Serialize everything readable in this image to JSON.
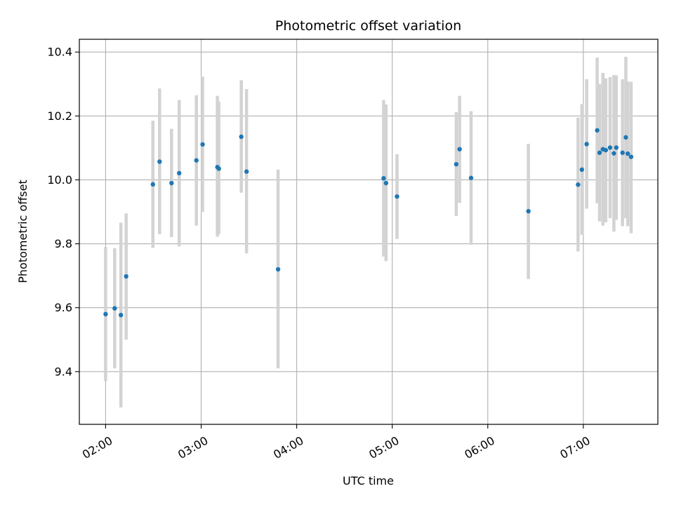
{
  "chart_data": {
    "type": "scatter",
    "title": "Photometric offset variation",
    "xlabel": "UTC time",
    "ylabel": "Photometric offset",
    "x_unit": "hours UTC",
    "xlim": [
      1.725,
      7.78
    ],
    "ylim": [
      9.235,
      10.44
    ],
    "x_ticks": [
      2,
      3,
      4,
      5,
      6,
      7
    ],
    "x_tick_labels": [
      "02:00",
      "03:00",
      "04:00",
      "05:00",
      "06:00",
      "07:00"
    ],
    "y_ticks": [
      9.4,
      9.6,
      9.8,
      10.0,
      10.2,
      10.4
    ],
    "y_tick_labels": [
      "9.4",
      "9.6",
      "9.8",
      "10.0",
      "10.2",
      "10.4"
    ],
    "grid": true,
    "series": [
      {
        "marker_color": "#1f77b4",
        "errorbar_color": "#d3d3d3",
        "points": [
          {
            "x": 2.0,
            "y": 9.58,
            "lo": 9.37,
            "hi": 9.79
          },
          {
            "x": 2.095,
            "y": 9.598,
            "lo": 9.41,
            "hi": 9.786
          },
          {
            "x": 2.16,
            "y": 9.577,
            "lo": 9.288,
            "hi": 9.866
          },
          {
            "x": 2.215,
            "y": 9.698,
            "lo": 9.5,
            "hi": 9.895
          },
          {
            "x": 2.495,
            "y": 9.986,
            "lo": 9.787,
            "hi": 10.185
          },
          {
            "x": 2.565,
            "y": 10.057,
            "lo": 9.83,
            "hi": 10.286
          },
          {
            "x": 2.69,
            "y": 9.99,
            "lo": 9.821,
            "hi": 10.16
          },
          {
            "x": 2.77,
            "y": 10.021,
            "lo": 9.792,
            "hi": 10.25
          },
          {
            "x": 2.95,
            "y": 10.061,
            "lo": 9.857,
            "hi": 10.265
          },
          {
            "x": 3.015,
            "y": 10.111,
            "lo": 9.9,
            "hi": 10.323
          },
          {
            "x": 3.17,
            "y": 10.04,
            "lo": 9.822,
            "hi": 10.263
          },
          {
            "x": 3.185,
            "y": 10.035,
            "lo": 9.83,
            "hi": 10.245
          },
          {
            "x": 3.42,
            "y": 10.135,
            "lo": 9.96,
            "hi": 10.312
          },
          {
            "x": 3.475,
            "y": 10.026,
            "lo": 9.77,
            "hi": 10.284
          },
          {
            "x": 3.805,
            "y": 9.72,
            "lo": 9.41,
            "hi": 10.032
          },
          {
            "x": 4.91,
            "y": 10.005,
            "lo": 9.76,
            "hi": 10.25
          },
          {
            "x": 4.935,
            "y": 9.99,
            "lo": 9.746,
            "hi": 10.236
          },
          {
            "x": 5.05,
            "y": 9.948,
            "lo": 9.815,
            "hi": 10.08
          },
          {
            "x": 5.67,
            "y": 10.049,
            "lo": 9.887,
            "hi": 10.212
          },
          {
            "x": 5.705,
            "y": 10.096,
            "lo": 9.928,
            "hi": 10.263
          },
          {
            "x": 5.825,
            "y": 10.006,
            "lo": 9.797,
            "hi": 10.215
          },
          {
            "x": 6.425,
            "y": 9.902,
            "lo": 9.69,
            "hi": 10.113
          },
          {
            "x": 6.945,
            "y": 9.985,
            "lo": 9.776,
            "hi": 10.195
          },
          {
            "x": 6.985,
            "y": 10.032,
            "lo": 9.828,
            "hi": 10.237
          },
          {
            "x": 7.035,
            "y": 10.112,
            "lo": 9.91,
            "hi": 10.315
          },
          {
            "x": 7.145,
            "y": 10.155,
            "lo": 9.927,
            "hi": 10.383
          },
          {
            "x": 7.17,
            "y": 10.085,
            "lo": 9.87,
            "hi": 10.3
          },
          {
            "x": 7.205,
            "y": 10.096,
            "lo": 9.857,
            "hi": 10.335
          },
          {
            "x": 7.235,
            "y": 10.093,
            "lo": 9.867,
            "hi": 10.318
          },
          {
            "x": 7.28,
            "y": 10.101,
            "lo": 9.88,
            "hi": 10.322
          },
          {
            "x": 7.32,
            "y": 10.083,
            "lo": 9.838,
            "hi": 10.328
          },
          {
            "x": 7.345,
            "y": 10.101,
            "lo": 9.875,
            "hi": 10.327
          },
          {
            "x": 7.41,
            "y": 10.085,
            "lo": 9.855,
            "hi": 10.315
          },
          {
            "x": 7.445,
            "y": 10.133,
            "lo": 9.88,
            "hi": 10.385
          },
          {
            "x": 7.465,
            "y": 10.082,
            "lo": 9.855,
            "hi": 10.308
          },
          {
            "x": 7.5,
            "y": 10.072,
            "lo": 9.833,
            "hi": 10.307
          }
        ]
      }
    ]
  }
}
